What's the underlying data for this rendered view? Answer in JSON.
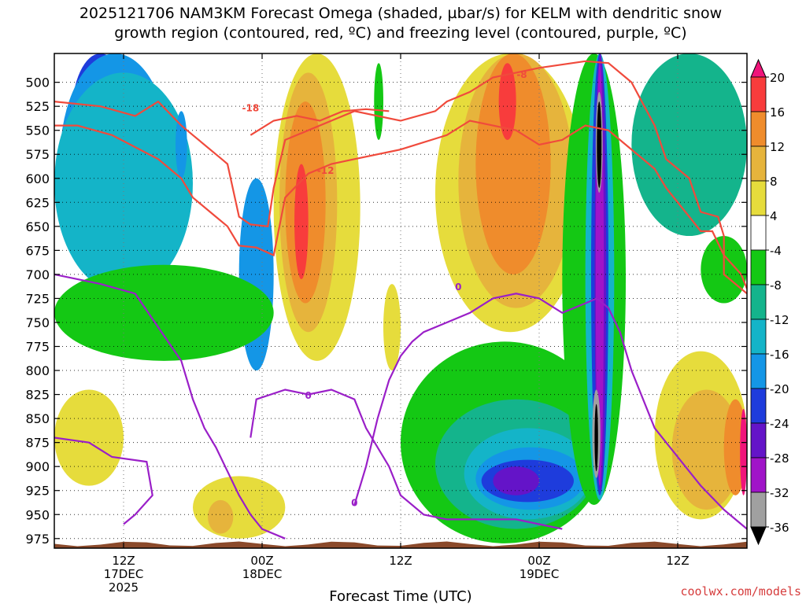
{
  "title": {
    "line1": "2025121706 NAM3KM Forecast Omega (shaded, µbar/s) for KELM with dendritic snow",
    "line2": "growth region (contoured, red, ºC) and freezing level (contoured, purple, ºC)"
  },
  "credit": "coolwx.com/models",
  "colors": {
    "ground": "#8b4a2b",
    "dgz_contour": "#f04a3c",
    "freezing_contour": "#9a1fc8",
    "gridline": "#000000"
  },
  "chart_data": {
    "type": "heatmap",
    "title": "2025121706 NAM3KM Forecast Omega (shaded, µbar/s) for KELM with dendritic snow growth region (contoured, red, ºC) and freezing level (contoured, purple, ºC)",
    "xlabel": "Forecast Time (UTC)",
    "ylabel": "",
    "x_range_hours": [
      0,
      60
    ],
    "y_range_hpa": [
      985,
      470
    ],
    "y_scale": "linear, pressure increasing downward",
    "grid": true,
    "y_ticks": [
      500,
      525,
      550,
      575,
      600,
      625,
      650,
      675,
      700,
      725,
      750,
      775,
      800,
      825,
      850,
      875,
      900,
      925,
      950,
      975
    ],
    "x_ticks": [
      {
        "hour": 6,
        "labels": [
          "12Z",
          "17DEC",
          "2025"
        ]
      },
      {
        "hour": 18,
        "labels": [
          "00Z",
          "18DEC"
        ]
      },
      {
        "hour": 30,
        "labels": [
          "12Z"
        ]
      },
      {
        "hour": 42,
        "labels": [
          "00Z",
          "19DEC"
        ]
      },
      {
        "hour": 54,
        "labels": [
          "12Z"
        ]
      }
    ],
    "colorbar": {
      "levels": [
        -36,
        -32,
        -28,
        -24,
        -20,
        -16,
        -12,
        -8,
        -4,
        4,
        8,
        12,
        16,
        20
      ],
      "labels": [
        "20",
        "16",
        "12",
        "8",
        "4",
        "-4",
        "-8",
        "-12",
        "-16",
        "-20",
        "-24",
        "-28",
        "-32",
        "-36"
      ],
      "bins": [
        {
          "range": "> 20",
          "color": "#f0147a"
        },
        {
          "range": "16 to 20",
          "color": "#f83c3c"
        },
        {
          "range": "12 to 16",
          "color": "#ef8c2c"
        },
        {
          "range": "8 to 12",
          "color": "#e6b43c"
        },
        {
          "range": "4 to 8",
          "color": "#e6dc3c"
        },
        {
          "range": "-4 to 4",
          "color": "#ffffff"
        },
        {
          "range": "-8 to -4",
          "color": "#14c814"
        },
        {
          "range": "-12 to -8",
          "color": "#14b48c"
        },
        {
          "range": "-16 to -12",
          "color": "#14b4c8"
        },
        {
          "range": "-20 to -16",
          "color": "#1496e6"
        },
        {
          "range": "-24 to -20",
          "color": "#1e3cdc"
        },
        {
          "range": "-28 to -24",
          "color": "#6414c8"
        },
        {
          "range": "-32 to -28",
          "color": "#a014c8"
        },
        {
          "range": "-36 to -32",
          "color": "#a0a0a0"
        },
        {
          "range": "< -36",
          "color": "#000000"
        }
      ]
    },
    "omega_regions": [
      {
        "band": "-24 to -20",
        "t0": 1.5,
        "t1": 6.5,
        "p0": 470,
        "p1": 600
      },
      {
        "band": "-20 to -16",
        "t0": 0.5,
        "t1": 10,
        "p0": 470,
        "p1": 690
      },
      {
        "band": "-16 to -12",
        "t0": 0,
        "t1": 12,
        "p0": 490,
        "p1": 720
      },
      {
        "band": "-24 to -20",
        "t0": 17,
        "t1": 18.2,
        "p0": 635,
        "p1": 745
      },
      {
        "band": "-20 to -16",
        "t0": 16,
        "t1": 19,
        "p0": 600,
        "p1": 800
      },
      {
        "band": "-20 to -16",
        "t0": 10.5,
        "t1": 11.5,
        "p0": 530,
        "p1": 600
      },
      {
        "band": "-8 to -4",
        "t0": 0,
        "t1": 19,
        "p0": 690,
        "p1": 790
      },
      {
        "band": "4 to 8",
        "t0": 0,
        "t1": 6,
        "p0": 820,
        "p1": 920
      },
      {
        "band": "4 to 8",
        "t0": 12,
        "t1": 20,
        "p0": 910,
        "p1": 975
      },
      {
        "band": "8 to 12",
        "t0": 13.3,
        "t1": 15.5,
        "p0": 935,
        "p1": 970
      },
      {
        "band": "4 to 8",
        "t0": 19,
        "t1": 26.5,
        "p0": 470,
        "p1": 790
      },
      {
        "band": "8 to 12",
        "t0": 19.5,
        "t1": 24.5,
        "p0": 490,
        "p1": 760
      },
      {
        "band": "12 to 16",
        "t0": 20,
        "t1": 23.5,
        "p0": 520,
        "p1": 730
      },
      {
        "band": "16 to 20",
        "t0": 20.8,
        "t1": 22,
        "p0": 585,
        "p1": 705
      },
      {
        "band": "-8 to -4",
        "t0": 27.7,
        "t1": 28.5,
        "p0": 480,
        "p1": 560
      },
      {
        "band": "4 to 8",
        "t0": 28.5,
        "t1": 30,
        "p0": 710,
        "p1": 800
      },
      {
        "band": "4 to 8",
        "t0": 33,
        "t1": 46,
        "p0": 470,
        "p1": 760
      },
      {
        "band": "8 to 12",
        "t0": 35,
        "t1": 45,
        "p0": 470,
        "p1": 735
      },
      {
        "band": "12 to 16",
        "t0": 36.5,
        "t1": 43,
        "p0": 470,
        "p1": 700
      },
      {
        "band": "16 to 20",
        "t0": 38.5,
        "t1": 40,
        "p0": 480,
        "p1": 560
      },
      {
        "band": "-8 to -4",
        "t0": 30,
        "t1": 48,
        "p0": 770,
        "p1": 980
      },
      {
        "band": "-12 to -8",
        "t0": 33,
        "t1": 47,
        "p0": 830,
        "p1": 965
      },
      {
        "band": "-16 to -12",
        "t0": 35.5,
        "t1": 46.5,
        "p0": 860,
        "p1": 955
      },
      {
        "band": "-20 to -16",
        "t0": 36.5,
        "t1": 46,
        "p0": 880,
        "p1": 945
      },
      {
        "band": "-24 to -20",
        "t0": 37,
        "t1": 45,
        "p0": 893,
        "p1": 937
      },
      {
        "band": "-28 to -24",
        "t0": 38,
        "t1": 42,
        "p0": 900,
        "p1": 930
      },
      {
        "band": "-8 to -4",
        "t0": 44,
        "t1": 49.5,
        "p0": 470,
        "p1": 940
      },
      {
        "band": "-16 to -12",
        "t0": 46,
        "t1": 48.5,
        "p0": 470,
        "p1": 935
      },
      {
        "band": "-24 to -20",
        "t0": 46.5,
        "t1": 48,
        "p0": 470,
        "p1": 930
      },
      {
        "band": "-28 to -24",
        "t0": 46.8,
        "t1": 47.8,
        "p0": 470,
        "p1": 925
      },
      {
        "band": "-32 to -28",
        "t0": 46.9,
        "t1": 47.6,
        "p0": 480,
        "p1": 920
      },
      {
        "band": "-36 to -32",
        "t0": 46.9,
        "t1": 47.5,
        "p0": 510,
        "p1": 615
      },
      {
        "band": "< -36",
        "t0": 47,
        "t1": 47.4,
        "p0": 520,
        "p1": 610
      },
      {
        "band": "-36 to -32",
        "t0": 46.6,
        "t1": 47.3,
        "p0": 820,
        "p1": 912
      },
      {
        "band": "< -36",
        "t0": 46.8,
        "t1": 47.1,
        "p0": 835,
        "p1": 905
      },
      {
        "band": "-12 to -8",
        "t0": 50,
        "t1": 60,
        "p0": 470,
        "p1": 660
      },
      {
        "band": "-8 to -4",
        "t0": 56,
        "t1": 60,
        "p0": 660,
        "p1": 730
      },
      {
        "band": "4 to 8",
        "t0": 52,
        "t1": 60,
        "p0": 780,
        "p1": 955
      },
      {
        "band": "8 to 12",
        "t0": 53.5,
        "t1": 59.5,
        "p0": 820,
        "p1": 945
      },
      {
        "band": "12 to 16",
        "t0": 58,
        "t1": 60,
        "p0": 830,
        "p1": 930
      },
      {
        "band": "> 20",
        "t0": 59.4,
        "t1": 60,
        "p0": 840,
        "p1": 930
      }
    ],
    "dendritic_contours": [
      {
        "level": "-12",
        "points": [
          [
            0,
            520
          ],
          [
            4,
            525
          ],
          [
            7,
            535
          ],
          [
            9,
            520
          ],
          [
            11,
            545
          ],
          [
            12,
            555
          ],
          [
            14.5,
            580
          ],
          [
            15,
            585
          ],
          [
            16,
            640
          ],
          [
            17,
            648
          ],
          [
            18.5,
            650
          ],
          [
            19,
            610
          ],
          [
            20,
            560
          ],
          [
            22,
            550
          ],
          [
            24,
            540
          ],
          [
            26,
            530
          ],
          [
            30,
            540
          ],
          [
            33,
            530
          ],
          [
            34,
            520
          ],
          [
            36,
            510
          ],
          [
            38,
            495
          ],
          [
            40,
            490
          ],
          [
            42,
            485
          ],
          [
            46,
            478
          ],
          [
            48,
            480
          ],
          [
            50,
            500
          ],
          [
            52,
            545
          ],
          [
            53,
            580
          ],
          [
            55,
            600
          ],
          [
            56,
            635
          ],
          [
            57.5,
            640
          ],
          [
            58,
            660
          ],
          [
            58,
            700
          ],
          [
            60,
            720
          ]
        ]
      },
      {
        "level": "-18",
        "points": [
          [
            0,
            545
          ],
          [
            2,
            545
          ],
          [
            5,
            555
          ],
          [
            9,
            580
          ],
          [
            11,
            600
          ],
          [
            12,
            620
          ],
          [
            14,
            640
          ],
          [
            15,
            650
          ],
          [
            16,
            670
          ],
          [
            17.5,
            672
          ],
          [
            19,
            680
          ],
          [
            20,
            620
          ],
          [
            22,
            595
          ],
          [
            24,
            585
          ],
          [
            26,
            580
          ],
          [
            30,
            570
          ],
          [
            34,
            555
          ],
          [
            36,
            540
          ],
          [
            38,
            545
          ],
          [
            40,
            550
          ],
          [
            42,
            565
          ],
          [
            44,
            560
          ],
          [
            46,
            545
          ],
          [
            48,
            550
          ],
          [
            50,
            570
          ],
          [
            52,
            590
          ],
          [
            53,
            610
          ],
          [
            55,
            640
          ],
          [
            56,
            655
          ],
          [
            57,
            655
          ],
          [
            58,
            680
          ],
          [
            59.5,
            700
          ],
          [
            60,
            715
          ]
        ]
      },
      {
        "level": "-15",
        "points": [
          [
            17,
            555
          ],
          [
            19,
            540
          ],
          [
            21,
            535
          ],
          [
            23,
            540
          ],
          [
            25,
            530
          ],
          [
            27,
            528
          ],
          [
            29,
            530
          ]
        ]
      }
    ],
    "freezing_contours": [
      {
        "level": "0",
        "points": [
          [
            0,
            700
          ],
          [
            4,
            710
          ],
          [
            7,
            720
          ],
          [
            9,
            755
          ],
          [
            11,
            790
          ],
          [
            12,
            830
          ],
          [
            13,
            860
          ],
          [
            14,
            880
          ],
          [
            15,
            905
          ],
          [
            16,
            930
          ],
          [
            17,
            950
          ],
          [
            18,
            965
          ],
          [
            20,
            975
          ]
        ]
      },
      {
        "level": "0",
        "points": [
          [
            0,
            870
          ],
          [
            3,
            875
          ],
          [
            5,
            890
          ],
          [
            8,
            895
          ],
          [
            8.5,
            930
          ],
          [
            7,
            950
          ],
          [
            6,
            960
          ]
        ]
      },
      {
        "level": "0",
        "points": [
          [
            17,
            870
          ],
          [
            17.5,
            830
          ],
          [
            20,
            820
          ],
          [
            22,
            825
          ],
          [
            24,
            820
          ],
          [
            26,
            830
          ],
          [
            27,
            860
          ],
          [
            29,
            900
          ],
          [
            30,
            930
          ],
          [
            32,
            950
          ],
          [
            34,
            955
          ],
          [
            37,
            955
          ],
          [
            40,
            955
          ],
          [
            42,
            960
          ],
          [
            44,
            965
          ]
        ]
      },
      {
        "level": "0",
        "points": [
          [
            26,
            940
          ],
          [
            27,
            900
          ],
          [
            28,
            850
          ],
          [
            29,
            810
          ],
          [
            30,
            785
          ],
          [
            31,
            770
          ],
          [
            32,
            760
          ],
          [
            34,
            750
          ],
          [
            36,
            740
          ],
          [
            38,
            725
          ],
          [
            40,
            720
          ],
          [
            42,
            725
          ],
          [
            44,
            740
          ],
          [
            46,
            730
          ],
          [
            47,
            725
          ],
          [
            48,
            735
          ],
          [
            49,
            760
          ],
          [
            50,
            800
          ],
          [
            52,
            860
          ],
          [
            54,
            890
          ],
          [
            56,
            920
          ],
          [
            58,
            945
          ],
          [
            60,
            965
          ]
        ]
      }
    ],
    "contour_labels": [
      {
        "text": "-18",
        "t": 17,
        "p": 527,
        "color": "#f04a3c"
      },
      {
        "text": "-12",
        "t": 23.5,
        "p": 592,
        "color": "#f04a3c"
      },
      {
        "text": "-8",
        "t": 40.5,
        "p": 492,
        "color": "#f04a3c"
      },
      {
        "text": "0",
        "t": 22,
        "p": 826,
        "color": "#9a1fc8"
      },
      {
        "text": "0",
        "t": 35,
        "p": 713,
        "color": "#9a1fc8"
      },
      {
        "text": "0",
        "t": 26,
        "p": 938,
        "color": "#9a1fc8"
      }
    ],
    "ground": {
      "top_hpa_range": [
        978,
        983
      ]
    }
  }
}
